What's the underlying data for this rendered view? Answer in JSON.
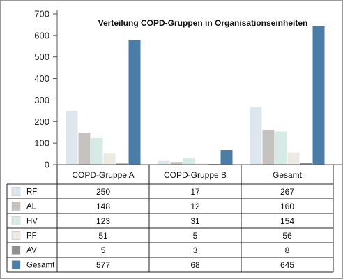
{
  "chart_data": {
    "type": "bar",
    "title": "Verteilung COPD-Gruppen in Organisationseinheiten",
    "categories": [
      "COPD-Gruppe A",
      "COPD-Gruppe B",
      "Gesamt"
    ],
    "series": [
      {
        "name": "RF",
        "values": [
          250,
          17,
          267
        ],
        "color": "#dde6ed"
      },
      {
        "name": "AL",
        "values": [
          148,
          12,
          160
        ],
        "color": "#c5c2c0"
      },
      {
        "name": "HV",
        "values": [
          123,
          31,
          154
        ],
        "color": "#d6ebe5"
      },
      {
        "name": "PF",
        "values": [
          51,
          5,
          56
        ],
        "color": "#eceae2"
      },
      {
        "name": "AV",
        "values": [
          5,
          3,
          8
        ],
        "color": "#8f8f8f"
      },
      {
        "name": "Gesamt",
        "values": [
          577,
          68,
          645
        ],
        "color": "#4a7ea6"
      }
    ],
    "yticks": [
      0,
      100,
      200,
      300,
      400,
      500,
      600,
      700
    ],
    "ylim": [
      0,
      700
    ],
    "xlabel": "",
    "ylabel": "",
    "grid": false,
    "legend": "data-table-left"
  }
}
